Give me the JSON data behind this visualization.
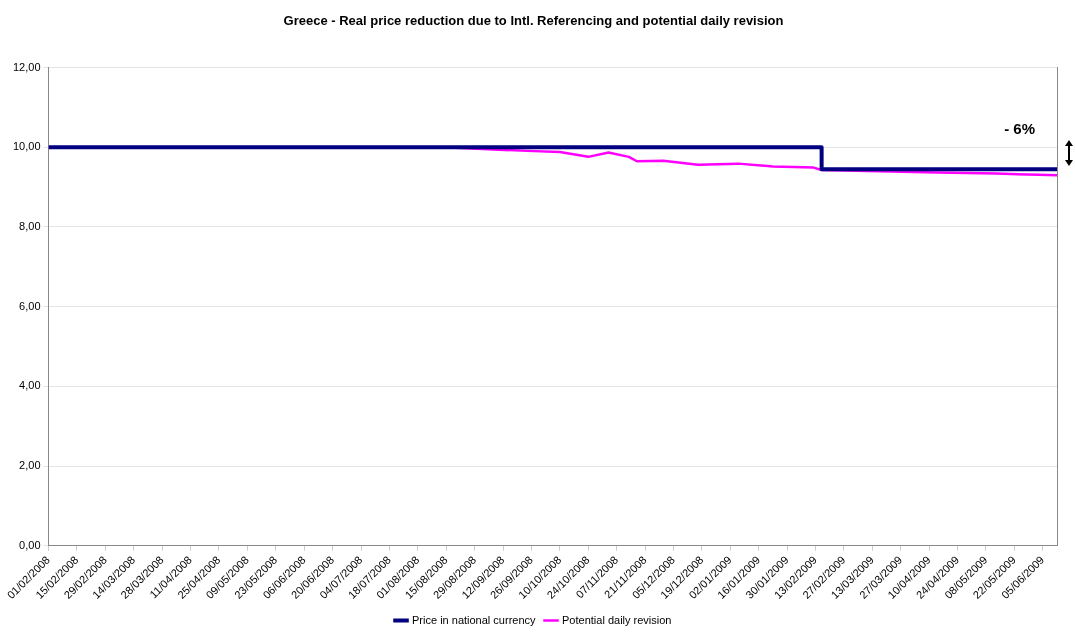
{
  "chart_data": {
    "type": "line",
    "title": "Greece - Real price reduction due to Intl. Referencing and potential daily revision",
    "xlim": [
      "2008-02-01",
      "2009-06-12"
    ],
    "xticks": [
      {
        "value": "2008-02-01",
        "label": "01/02/2008"
      },
      {
        "value": "2008-02-15",
        "label": "15/02/2008"
      },
      {
        "value": "2008-02-29",
        "label": "29/02/2008"
      },
      {
        "value": "2008-03-14",
        "label": "14/03/2008"
      },
      {
        "value": "2008-03-28",
        "label": "28/03/2008"
      },
      {
        "value": "2008-04-11",
        "label": "11/04/2008"
      },
      {
        "value": "2008-04-25",
        "label": "25/04/2008"
      },
      {
        "value": "2008-05-09",
        "label": "09/05/2008"
      },
      {
        "value": "2008-05-23",
        "label": "23/05/2008"
      },
      {
        "value": "2008-06-06",
        "label": "06/06/2008"
      },
      {
        "value": "2008-06-20",
        "label": "20/06/2008"
      },
      {
        "value": "2008-07-04",
        "label": "04/07/2008"
      },
      {
        "value": "2008-07-18",
        "label": "18/07/2008"
      },
      {
        "value": "2008-08-01",
        "label": "01/08/2008"
      },
      {
        "value": "2008-08-15",
        "label": "15/08/2008"
      },
      {
        "value": "2008-08-29",
        "label": "29/08/2008"
      },
      {
        "value": "2008-09-12",
        "label": "12/09/2008"
      },
      {
        "value": "2008-09-26",
        "label": "26/09/2008"
      },
      {
        "value": "2008-10-10",
        "label": "10/10/2008"
      },
      {
        "value": "2008-10-24",
        "label": "24/10/2008"
      },
      {
        "value": "2008-11-07",
        "label": "07/11/2008"
      },
      {
        "value": "2008-11-21",
        "label": "21/11/2008"
      },
      {
        "value": "2008-12-05",
        "label": "05/12/2008"
      },
      {
        "value": "2008-12-19",
        "label": "19/12/2008"
      },
      {
        "value": "2009-01-02",
        "label": "02/01/2009"
      },
      {
        "value": "2009-01-16",
        "label": "16/01/2009"
      },
      {
        "value": "2009-01-30",
        "label": "30/01/2009"
      },
      {
        "value": "2009-02-13",
        "label": "13/02/2009"
      },
      {
        "value": "2009-02-27",
        "label": "27/02/2009"
      },
      {
        "value": "2009-03-13",
        "label": "13/03/2009"
      },
      {
        "value": "2009-03-27",
        "label": "27/03/2009"
      },
      {
        "value": "2009-04-10",
        "label": "10/04/2009"
      },
      {
        "value": "2009-04-24",
        "label": "24/04/2009"
      },
      {
        "value": "2009-05-08",
        "label": "08/05/2009"
      },
      {
        "value": "2009-05-22",
        "label": "22/05/2009"
      },
      {
        "value": "2009-06-05",
        "label": "05/06/2009"
      }
    ],
    "ylim": [
      0,
      12
    ],
    "yticks": [
      {
        "value": 0,
        "label": "0,00"
      },
      {
        "value": 2,
        "label": "2,00"
      },
      {
        "value": 4,
        "label": "4,00"
      },
      {
        "value": 6,
        "label": "6,00"
      },
      {
        "value": 8,
        "label": "8,00"
      },
      {
        "value": 10,
        "label": "10,00"
      },
      {
        "value": 12,
        "label": "12,00"
      }
    ],
    "grid": "y",
    "legend": "bottom",
    "marker": "none",
    "line_style": "solid",
    "annotations": [
      "- 6%"
    ],
    "series": [
      {
        "name": "Price in national currency",
        "color": "#000080",
        "x": [
          "2008-02-01",
          "2009-02-16",
          "2009-02-16",
          "2009-06-12"
        ],
        "values": [
          10,
          10,
          9.45,
          9.45
        ]
      },
      {
        "name": "Potential daily revision",
        "color": "#ff00ff",
        "x": [
          "2008-02-01",
          "2008-08-14",
          "2008-09-24",
          "2008-10-10",
          "2008-10-24",
          "2008-11-03",
          "2008-11-13",
          "2008-11-17",
          "2008-11-30",
          "2008-12-17",
          "2009-01-06",
          "2009-01-23",
          "2009-02-12",
          "2009-02-16",
          "2009-04-14",
          "2009-05-13",
          "2009-06-03",
          "2009-06-12"
        ],
        "values": [
          10,
          10,
          9.91,
          9.88,
          9.76,
          9.87,
          9.76,
          9.65,
          9.66,
          9.56,
          9.59,
          9.52,
          9.49,
          9.43,
          9.37,
          9.34,
          9.31,
          9.3
        ]
      }
    ]
  }
}
